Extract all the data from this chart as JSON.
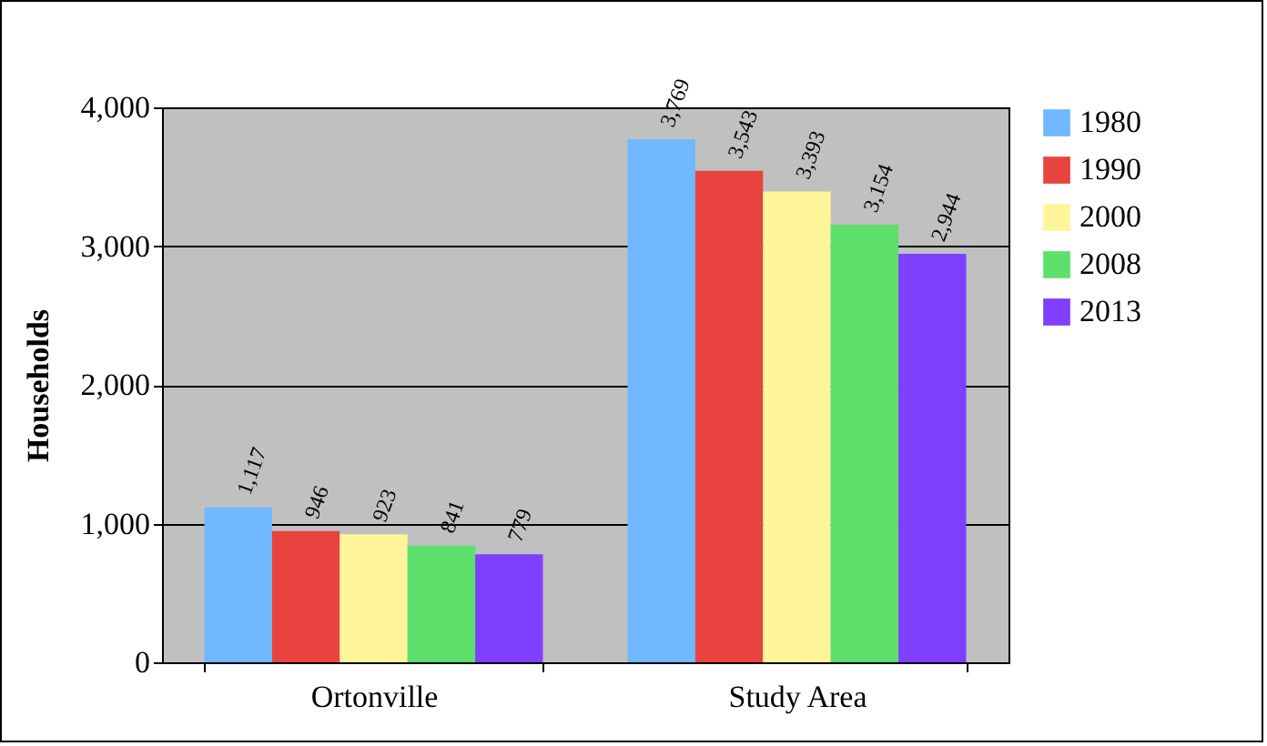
{
  "chart_data": {
    "type": "bar",
    "ylabel": "Households",
    "categories": [
      "Ortonville",
      "Study Area"
    ],
    "series": [
      {
        "name": "1980",
        "color": "#70b8ff",
        "values": [
          1117,
          3769
        ],
        "value_labels": [
          "1,117",
          "3,769"
        ]
      },
      {
        "name": "1990",
        "color": "#e8433f",
        "values": [
          946,
          3543
        ],
        "value_labels": [
          "946",
          "3,543"
        ]
      },
      {
        "name": "2000",
        "color": "#fff59b",
        "values": [
          923,
          3393
        ],
        "value_labels": [
          "923",
          "3,393"
        ]
      },
      {
        "name": "2008",
        "color": "#5ce06b",
        "values": [
          841,
          3154
        ],
        "value_labels": [
          "841",
          "3,154"
        ]
      },
      {
        "name": "2013",
        "color": "#7f3fff",
        "values": [
          779,
          2944
        ],
        "value_labels": [
          "779",
          "2,944"
        ]
      }
    ],
    "ylim": [
      0,
      4000
    ],
    "yticks": [
      0,
      {
        "value": 1000,
        "label": "1,000"
      },
      {
        "value": 2000,
        "label": "2,000"
      },
      {
        "value": 3000,
        "label": "3,000"
      },
      {
        "value": 4000,
        "label": "4,000"
      }
    ],
    "grid": "y",
    "legend": "right"
  }
}
